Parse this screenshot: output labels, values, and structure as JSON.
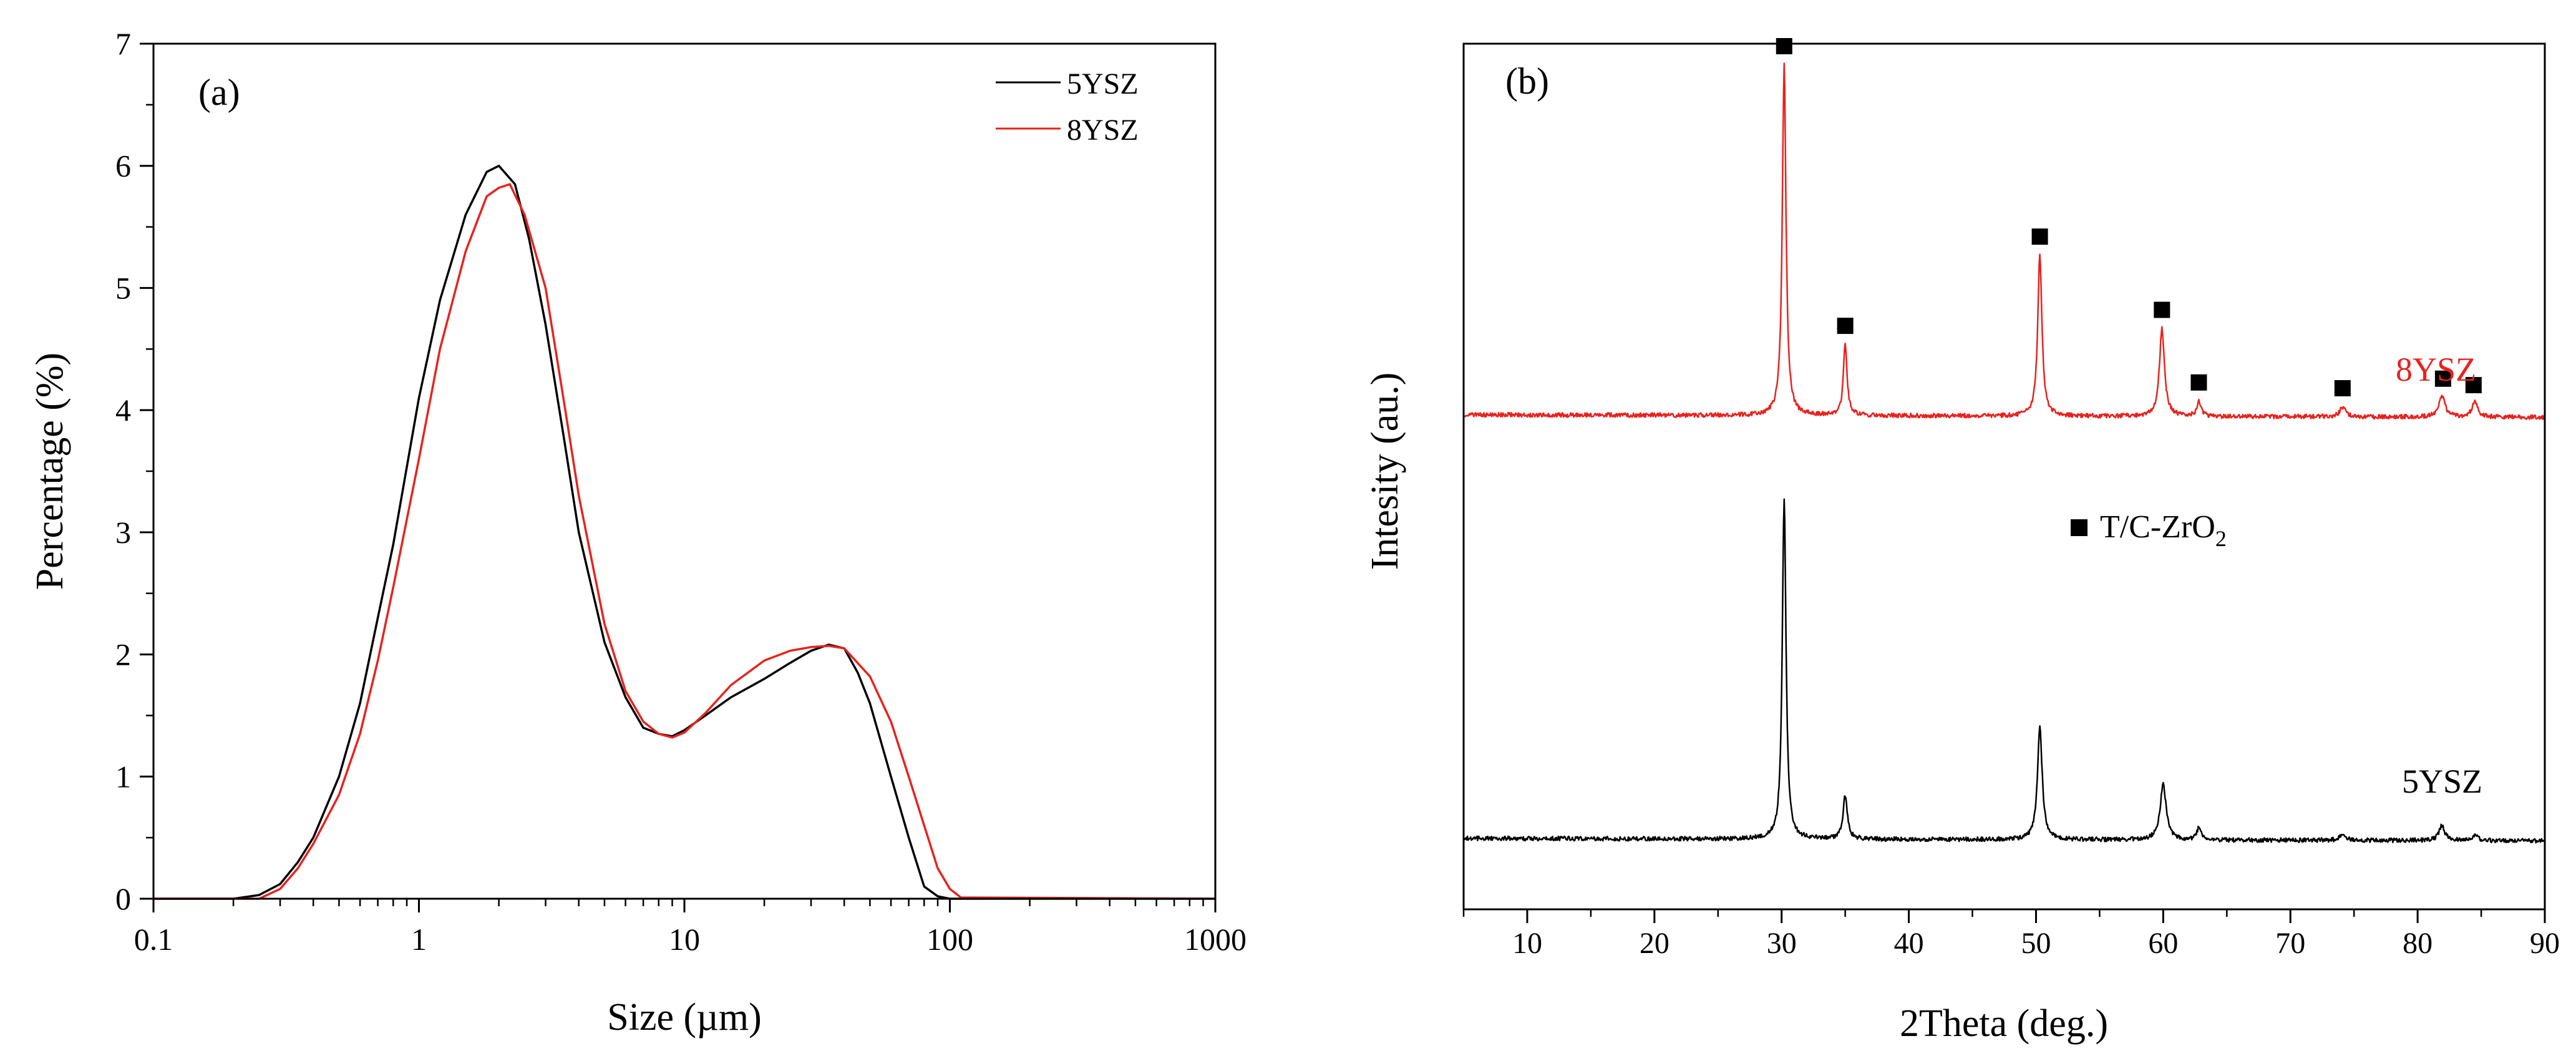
{
  "chart_data": [
    {
      "type": "line",
      "panel_label": "(a)",
      "xlabel": "Size (µm)",
      "ylabel": "Percentage (%)",
      "xscale": "log",
      "xlim": [
        0.1,
        1000
      ],
      "ylim": [
        0,
        7
      ],
      "xticks": [
        0.1,
        1,
        10,
        100,
        1000
      ],
      "xtick_labels": [
        "0.1",
        "1",
        "10",
        "100",
        "1000"
      ],
      "yticks": [
        0,
        1,
        2,
        3,
        4,
        5,
        6,
        7
      ],
      "ytick_labels": [
        "0",
        "1",
        "2",
        "3",
        "4",
        "5",
        "6",
        "7"
      ],
      "legend_position": "top-right",
      "series": [
        {
          "name": "5YSZ",
          "color": "#000000",
          "x": [
            0.1,
            0.2,
            0.25,
            0.3,
            0.35,
            0.4,
            0.5,
            0.6,
            0.7,
            0.8,
            1.0,
            1.2,
            1.5,
            1.8,
            2.0,
            2.3,
            2.6,
            3.0,
            3.5,
            4.0,
            5.0,
            6.0,
            7.0,
            8.0,
            9.0,
            10,
            12,
            15,
            20,
            25,
            30,
            35,
            40,
            45,
            50,
            60,
            70,
            80,
            90,
            100,
            1000
          ],
          "y": [
            0,
            0,
            0.03,
            0.12,
            0.3,
            0.5,
            1.0,
            1.6,
            2.3,
            2.9,
            4.1,
            4.9,
            5.6,
            5.95,
            6.0,
            5.85,
            5.4,
            4.7,
            3.8,
            3.0,
            2.1,
            1.65,
            1.4,
            1.35,
            1.33,
            1.38,
            1.5,
            1.65,
            1.8,
            1.93,
            2.03,
            2.08,
            2.05,
            1.85,
            1.6,
            1.0,
            0.5,
            0.1,
            0.02,
            0,
            0
          ]
        },
        {
          "name": "8YSZ",
          "color": "#e8221e",
          "x": [
            0.1,
            0.25,
            0.3,
            0.35,
            0.4,
            0.5,
            0.6,
            0.7,
            0.8,
            1.0,
            1.2,
            1.5,
            1.8,
            2.0,
            2.2,
            2.5,
            3.0,
            3.5,
            4.0,
            5.0,
            6.0,
            7.0,
            8.0,
            9.0,
            10,
            12,
            15,
            20,
            25,
            30,
            35,
            40,
            50,
            60,
            70,
            80,
            90,
            100,
            110,
            1000
          ],
          "y": [
            0,
            0,
            0.08,
            0.25,
            0.45,
            0.85,
            1.35,
            1.95,
            2.55,
            3.6,
            4.5,
            5.3,
            5.75,
            5.82,
            5.85,
            5.6,
            5.0,
            4.1,
            3.3,
            2.25,
            1.7,
            1.45,
            1.35,
            1.32,
            1.36,
            1.52,
            1.75,
            1.95,
            2.03,
            2.06,
            2.07,
            2.05,
            1.82,
            1.45,
            1.0,
            0.6,
            0.25,
            0.08,
            0.01,
            0
          ]
        }
      ]
    },
    {
      "type": "line",
      "panel_label": "(b)",
      "xlabel": "2Theta (deg.)",
      "ylabel": "Intesity (au.)",
      "xlim": [
        5,
        90
      ],
      "xticks": [
        10,
        20,
        30,
        40,
        50,
        60,
        70,
        80,
        90
      ],
      "xtick_labels": [
        "10",
        "20",
        "30",
        "40",
        "50",
        "60",
        "70",
        "80",
        "90"
      ],
      "y_axis_ticks": "none",
      "legend": {
        "marker": "square",
        "label_main": "T/C-ZrO",
        "label_sub": "2"
      },
      "series": [
        {
          "name": "8YSZ",
          "label": "8YSZ",
          "color": "#e8221e",
          "baseline": 0.3,
          "slope": -0.05,
          "peaks": [
            {
              "x": 30.2,
              "h": 7.2,
              "w": 0.22
            },
            {
              "x": 35.0,
              "h": 1.45,
              "w": 0.22
            },
            {
              "x": 50.3,
              "h": 3.3,
              "w": 0.25
            },
            {
              "x": 59.9,
              "h": 1.8,
              "w": 0.3
            },
            {
              "x": 62.8,
              "h": 0.3,
              "w": 0.25
            },
            {
              "x": 74.1,
              "h": 0.2,
              "w": 0.35
            },
            {
              "x": 81.9,
              "h": 0.45,
              "w": 0.35
            },
            {
              "x": 84.5,
              "h": 0.3,
              "w": 0.35
            }
          ],
          "phase_markers_x": [
            30.2,
            35.0,
            50.3,
            59.9,
            62.8,
            74.1,
            82.0,
            84.4
          ]
        },
        {
          "name": "5YSZ",
          "label": "5YSZ",
          "color": "#000000",
          "baseline": 0.15,
          "slope": -0.05,
          "peaks": [
            {
              "x": 30.2,
              "h": 7.0,
              "w": 0.22
            },
            {
              "x": 35.0,
              "h": 0.9,
              "w": 0.25
            },
            {
              "x": 50.3,
              "h": 2.35,
              "w": 0.28
            },
            {
              "x": 60.0,
              "h": 1.15,
              "w": 0.35
            },
            {
              "x": 62.8,
              "h": 0.25,
              "w": 0.25
            },
            {
              "x": 74.1,
              "h": 0.12,
              "w": 0.35
            },
            {
              "x": 81.9,
              "h": 0.3,
              "w": 0.35
            },
            {
              "x": 84.5,
              "h": 0.12,
              "w": 0.35
            }
          ]
        }
      ]
    }
  ]
}
